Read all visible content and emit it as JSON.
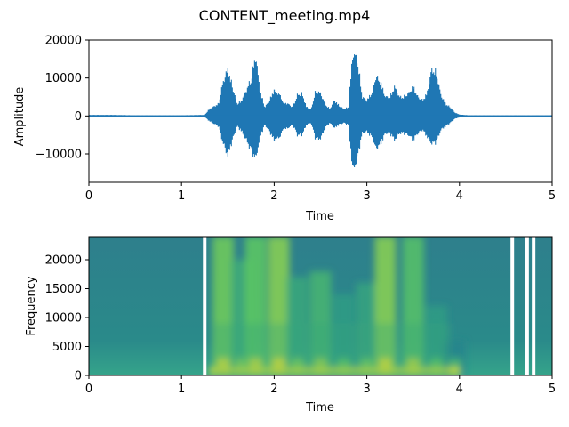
{
  "figure": {
    "title": "CONTENT_meeting.mp4"
  },
  "chart_data": [
    {
      "type": "line",
      "panel": "waveform",
      "xlabel": "Time",
      "ylabel": "Amplitude",
      "xlim": [
        0,
        5
      ],
      "ylim": [
        -17500,
        20000
      ],
      "xticks": [
        0,
        1,
        2,
        3,
        4,
        5
      ],
      "yticks": [
        -10000,
        0,
        10000,
        20000
      ],
      "grid": false,
      "color": "#1f77b4",
      "series": [
        {
          "x": [
            0.0,
            0.25,
            0.5,
            0.75,
            1.0,
            1.25,
            1.3,
            1.4,
            1.45,
            1.5,
            1.55,
            1.6,
            1.65,
            1.7,
            1.75,
            1.8,
            1.85,
            1.9,
            1.95,
            2.0,
            2.05,
            2.1,
            2.15,
            2.2,
            2.25,
            2.3,
            2.35,
            2.4,
            2.45,
            2.5,
            2.55,
            2.6,
            2.65,
            2.7,
            2.75,
            2.8,
            2.85,
            2.9,
            2.95,
            3.0,
            3.05,
            3.1,
            3.15,
            3.2,
            3.25,
            3.3,
            3.35,
            3.4,
            3.45,
            3.5,
            3.55,
            3.6,
            3.65,
            3.7,
            3.75,
            3.8,
            3.85,
            3.9,
            3.95,
            4.0,
            4.1,
            4.25,
            4.5,
            4.75,
            5.0
          ],
          "max": [
            300,
            300,
            200,
            200,
            200,
            300,
            2000,
            3500,
            10000,
            13500,
            8500,
            3500,
            4500,
            7500,
            10500,
            17500,
            7000,
            2500,
            4500,
            7500,
            6500,
            4000,
            3500,
            2500,
            6000,
            6500,
            2500,
            2000,
            7500,
            6500,
            3500,
            2000,
            4500,
            3000,
            2000,
            2500,
            18500,
            16000,
            5500,
            4500,
            6500,
            11500,
            9500,
            5500,
            5500,
            8500,
            5500,
            5500,
            6500,
            8500,
            5500,
            4500,
            6500,
            13500,
            12500,
            6000,
            3500,
            2500,
            1000,
            400,
            200,
            200,
            200,
            200,
            200
          ],
          "min": [
            -300,
            -300,
            -200,
            -200,
            -200,
            -300,
            -1500,
            -3000,
            -8000,
            -11500,
            -7000,
            -3000,
            -4500,
            -7000,
            -10000,
            -12500,
            -6000,
            -2500,
            -4500,
            -7000,
            -6500,
            -4000,
            -3500,
            -2500,
            -5500,
            -5500,
            -2500,
            -2000,
            -7000,
            -6500,
            -3500,
            -2000,
            -3500,
            -2500,
            -2000,
            -2500,
            -16000,
            -12000,
            -5000,
            -4500,
            -6000,
            -9500,
            -8000,
            -5000,
            -5000,
            -7000,
            -5000,
            -5000,
            -5500,
            -7000,
            -5000,
            -4000,
            -6000,
            -8000,
            -7500,
            -4000,
            -3000,
            -2000,
            -800,
            -400,
            -200,
            -200,
            -200,
            -200,
            -200
          ]
        }
      ]
    },
    {
      "type": "heatmap",
      "panel": "spectrogram",
      "xlabel": "Time",
      "ylabel": "Frequency",
      "xlim": [
        0,
        5
      ],
      "ylim": [
        0,
        24000
      ],
      "xticks": [
        0,
        1,
        2,
        3,
        4,
        5
      ],
      "yticks": [
        0,
        5000,
        10000,
        15000,
        20000
      ],
      "grid": false,
      "colormap": "viridis",
      "colormap_stops": [
        "#440154",
        "#3b528b",
        "#21918c",
        "#5ec962",
        "#fde725"
      ],
      "intensity_scale": [
        0,
        1
      ],
      "speech_segments": [
        {
          "t": 1.45,
          "freq_top": 24000,
          "level": 0.78
        },
        {
          "t": 1.65,
          "freq_top": 20000,
          "level": 0.62
        },
        {
          "t": 1.8,
          "freq_top": 24000,
          "level": 0.75
        },
        {
          "t": 2.05,
          "freq_top": 24000,
          "level": 0.82
        },
        {
          "t": 2.25,
          "freq_top": 17000,
          "level": 0.6
        },
        {
          "t": 2.5,
          "freq_top": 18000,
          "level": 0.66
        },
        {
          "t": 2.75,
          "freq_top": 14000,
          "level": 0.55
        },
        {
          "t": 3.0,
          "freq_top": 16000,
          "level": 0.58
        },
        {
          "t": 3.2,
          "freq_top": 24000,
          "level": 0.82
        },
        {
          "t": 3.5,
          "freq_top": 24000,
          "level": 0.72
        },
        {
          "t": 3.75,
          "freq_top": 12000,
          "level": 0.55
        },
        {
          "t": 3.95,
          "freq_top": 6000,
          "level": 0.45
        }
      ],
      "gap_times": [
        1.25,
        4.57,
        4.73,
        4.8
      ]
    }
  ]
}
